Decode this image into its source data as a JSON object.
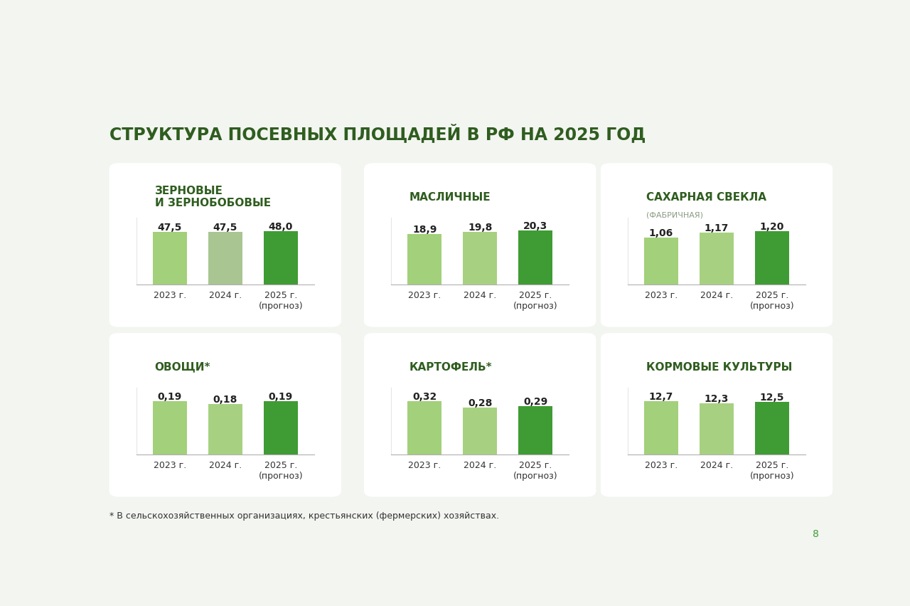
{
  "title": "СТРУКТУРА ПОСЕВНЫХ ПЛОЩАДЕЙ В РФ НА 2025 ГОД",
  "note": "* В сельскохозяйственных организациях, крестьянских (фермерских) хозяйствах.",
  "page": "8",
  "chart_data": [
    {
      "type": "bar",
      "title": "ЗЕРНОВЫЕ\nИ ЗЕРНОБОБОВЫЕ",
      "categories": [
        "2023 г.",
        "2024 г.",
        "2025 г.\n(прогноз)"
      ],
      "values": [
        47.5,
        47.5,
        48.0
      ],
      "value_labels": [
        "47,5",
        "47,5",
        "48,0"
      ],
      "colors": [
        "#a3d07a",
        "#a9c592",
        "#3f9b34"
      ],
      "ylim": [
        0,
        60
      ],
      "yticks": [],
      "data_labels": true,
      "tick_labels": "x"
    },
    {
      "type": "bar",
      "title": "МАСЛИЧНЫЕ",
      "categories": [
        "2023 г.",
        "2024 г.",
        "2025 г.\n(прогноз)"
      ],
      "values": [
        18.9,
        19.8,
        20.3
      ],
      "value_labels": [
        "18,9",
        "19,8",
        "20,3"
      ],
      "colors": [
        "#a3d07a",
        "#a7d181",
        "#3f9b34"
      ],
      "ylim": [
        0,
        25
      ],
      "yticks": [],
      "data_labels": true,
      "tick_labels": "x"
    },
    {
      "type": "bar",
      "title": "САХАРНАЯ СВЕКЛА",
      "subtitle": "(ФАБРИЧНАЯ)",
      "categories": [
        "2023 г.",
        "2024 г.",
        "2025 г.\n(прогноз)"
      ],
      "values": [
        1.06,
        1.17,
        1.2
      ],
      "value_labels": [
        "1,06",
        "1,17",
        "1,20"
      ],
      "colors": [
        "#a3d07a",
        "#a7d181",
        "#3f9b34"
      ],
      "ylim": [
        0,
        1.5
      ],
      "yticks": [],
      "data_labels": true,
      "tick_labels": "x"
    },
    {
      "type": "bar",
      "title": "ОВОЩИ*",
      "categories": [
        "2023 г.",
        "2024 г.",
        "2025 г.\n(прогноз)"
      ],
      "values": [
        0.19,
        0.18,
        0.19
      ],
      "value_labels": [
        "0,19",
        "0,18",
        "0,19"
      ],
      "colors": [
        "#a3d07a",
        "#a7d181",
        "#3f9b34"
      ],
      "ylim": [
        0,
        0.24
      ],
      "yticks": [],
      "data_labels": true,
      "tick_labels": "x"
    },
    {
      "type": "bar",
      "title": "КАРТОФЕЛЬ*",
      "categories": [
        "2023 г.",
        "2024 г.",
        "2025 г.\n(прогноз)"
      ],
      "values": [
        0.32,
        0.28,
        0.29
      ],
      "value_labels": [
        "0,32",
        "0,28",
        "0,29"
      ],
      "colors": [
        "#a3d07a",
        "#a7d181",
        "#3f9b34"
      ],
      "ylim": [
        0,
        0.4
      ],
      "yticks": [],
      "data_labels": true,
      "tick_labels": "x"
    },
    {
      "type": "bar",
      "title": "КОРМОВЫЕ КУЛЬТУРЫ",
      "categories": [
        "2023 г.",
        "2024 г.",
        "2025 г.\n(прогноз)"
      ],
      "values": [
        12.7,
        12.3,
        12.5
      ],
      "value_labels": [
        "12,7",
        "12,3",
        "12,5"
      ],
      "colors": [
        "#a3d07a",
        "#a7d181",
        "#3f9b34"
      ],
      "ylim": [
        0,
        16
      ],
      "yticks": [],
      "data_labels": true,
      "tick_labels": "x"
    }
  ]
}
